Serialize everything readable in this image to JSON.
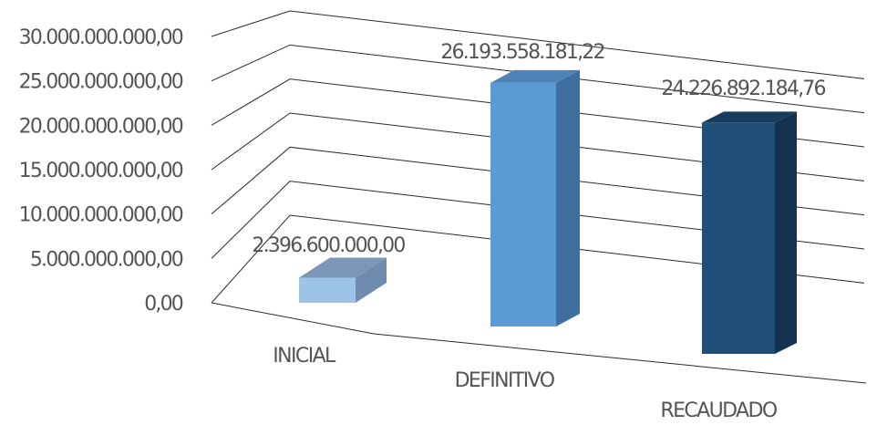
{
  "chart_data": {
    "type": "bar",
    "three_d": true,
    "categories": [
      "INICIAL",
      "DEFINITIVO",
      "RECAUDADO"
    ],
    "values": [
      2396600000.0,
      26193558181.22,
      24226892184.76
    ],
    "data_labels": [
      "2.396.600.000,00",
      "26.193.558.181,22",
      "24.226.892.184,76"
    ],
    "y_ticks": [
      0,
      5000000000,
      10000000000,
      15000000000,
      20000000000,
      25000000000,
      30000000000
    ],
    "y_tick_labels": [
      "0,00",
      "5.000.000.000,00",
      "10.000.000.000,00",
      "15.000.000.000,00",
      "20.000.000.000,00",
      "25.000.000.000,00",
      "30.000.000.000,00"
    ],
    "ylim": [
      0,
      30000000000
    ],
    "grid": true,
    "legend": false,
    "colors": {
      "bars": [
        "#9DC3E6",
        "#5B9BD5",
        "#1F4E79"
      ],
      "tops": [
        "#7A96B8",
        "#4F84B8",
        "#173C5E"
      ],
      "sides": [
        "#6F8BAE",
        "#3E6F9E",
        "#13324F"
      ],
      "grid": "#2a2a2a",
      "text": "#555555"
    }
  }
}
